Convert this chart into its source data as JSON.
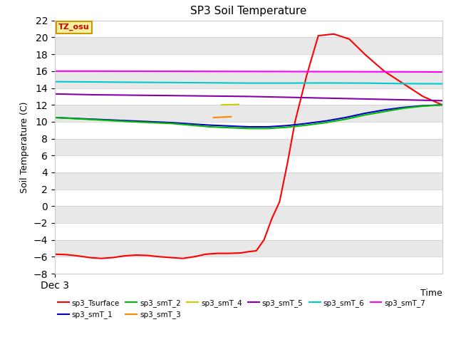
{
  "title": "SP3 Soil Temperature",
  "ylabel": "Soil Temperature (C)",
  "xlabel": "Time",
  "annotation": "TZ_osu",
  "x_label_start": "Dec 3",
  "ylim": [
    -8,
    22
  ],
  "yticks": [
    -8,
    -6,
    -4,
    -2,
    0,
    2,
    4,
    6,
    8,
    10,
    12,
    14,
    16,
    18,
    20,
    22
  ],
  "bg_color": "#e8e8e8",
  "band_color_light": "#f0f0f0",
  "band_color_dark": "#e0e0e0",
  "series": {
    "sp3_Tsurface": {
      "color": "#ff0000",
      "x": [
        0,
        0.03,
        0.06,
        0.09,
        0.12,
        0.15,
        0.18,
        0.21,
        0.24,
        0.27,
        0.3,
        0.33,
        0.36,
        0.39,
        0.42,
        0.45,
        0.48,
        0.5,
        0.52,
        0.54,
        0.56,
        0.58,
        0.6,
        0.62,
        0.65,
        0.68,
        0.72,
        0.76,
        0.8,
        0.85,
        0.9,
        0.95,
        1.0
      ],
      "y": [
        -5.7,
        -5.75,
        -5.9,
        -6.1,
        -6.2,
        -6.1,
        -5.9,
        -5.8,
        -5.85,
        -6.0,
        -6.1,
        -6.2,
        -6.0,
        -5.7,
        -5.6,
        -5.6,
        -5.55,
        -5.4,
        -5.3,
        -4.0,
        -1.5,
        0.5,
        5.0,
        10.0,
        15.5,
        20.2,
        20.4,
        19.8,
        18.0,
        16.0,
        14.5,
        13.0,
        12.0
      ]
    },
    "sp3_smT_1": {
      "color": "#0000cc",
      "x": [
        0,
        0.1,
        0.2,
        0.3,
        0.4,
        0.5,
        0.55,
        0.6,
        0.65,
        0.7,
        0.75,
        0.8,
        0.85,
        0.9,
        0.95,
        1.0
      ],
      "y": [
        10.5,
        10.3,
        10.1,
        9.9,
        9.6,
        9.4,
        9.4,
        9.55,
        9.8,
        10.1,
        10.5,
        11.0,
        11.4,
        11.7,
        11.9,
        12.0
      ]
    },
    "sp3_smT_2": {
      "color": "#00bb00",
      "x": [
        0,
        0.1,
        0.2,
        0.3,
        0.4,
        0.5,
        0.55,
        0.6,
        0.65,
        0.7,
        0.75,
        0.8,
        0.85,
        0.9,
        0.95,
        1.0
      ],
      "y": [
        10.5,
        10.25,
        10.0,
        9.8,
        9.4,
        9.2,
        9.2,
        9.35,
        9.6,
        9.9,
        10.3,
        10.8,
        11.2,
        11.6,
        11.85,
        12.0
      ]
    },
    "sp3_smT_3": {
      "color": "#ff8800",
      "x": [
        0.41,
        0.455
      ],
      "y": [
        10.5,
        10.6
      ]
    },
    "sp3_smT_4": {
      "color": "#cccc00",
      "x": [
        0.43,
        0.475
      ],
      "y": [
        12.0,
        12.05
      ]
    },
    "sp3_smT_5": {
      "color": "#8800aa",
      "x": [
        0,
        0.1,
        0.2,
        0.3,
        0.4,
        0.5,
        0.6,
        0.65,
        0.7,
        0.75,
        0.8,
        0.85,
        0.9,
        0.95,
        1.0
      ],
      "y": [
        13.3,
        13.2,
        13.15,
        13.1,
        13.05,
        13.0,
        12.9,
        12.85,
        12.8,
        12.75,
        12.7,
        12.65,
        12.6,
        12.55,
        12.5
      ]
    },
    "sp3_smT_6": {
      "color": "#00cccc",
      "x": [
        0,
        0.1,
        0.2,
        0.3,
        0.4,
        0.5,
        0.6,
        0.7,
        0.8,
        0.9,
        1.0
      ],
      "y": [
        14.75,
        14.72,
        14.68,
        14.65,
        14.62,
        14.58,
        14.58,
        14.6,
        14.58,
        14.52,
        14.5
      ]
    },
    "sp3_smT_7": {
      "color": "#ff00ff",
      "x": [
        0,
        0.1,
        0.2,
        0.3,
        0.4,
        0.5,
        0.6,
        0.7,
        0.8,
        0.9,
        1.0
      ],
      "y": [
        16.0,
        16.0,
        15.99,
        15.98,
        15.97,
        15.96,
        15.95,
        15.94,
        15.93,
        15.92,
        15.9
      ]
    }
  },
  "legend_order": [
    "sp3_Tsurface",
    "sp3_smT_1",
    "sp3_smT_2",
    "sp3_smT_3",
    "sp3_smT_4",
    "sp3_smT_5",
    "sp3_smT_6",
    "sp3_smT_7"
  ]
}
